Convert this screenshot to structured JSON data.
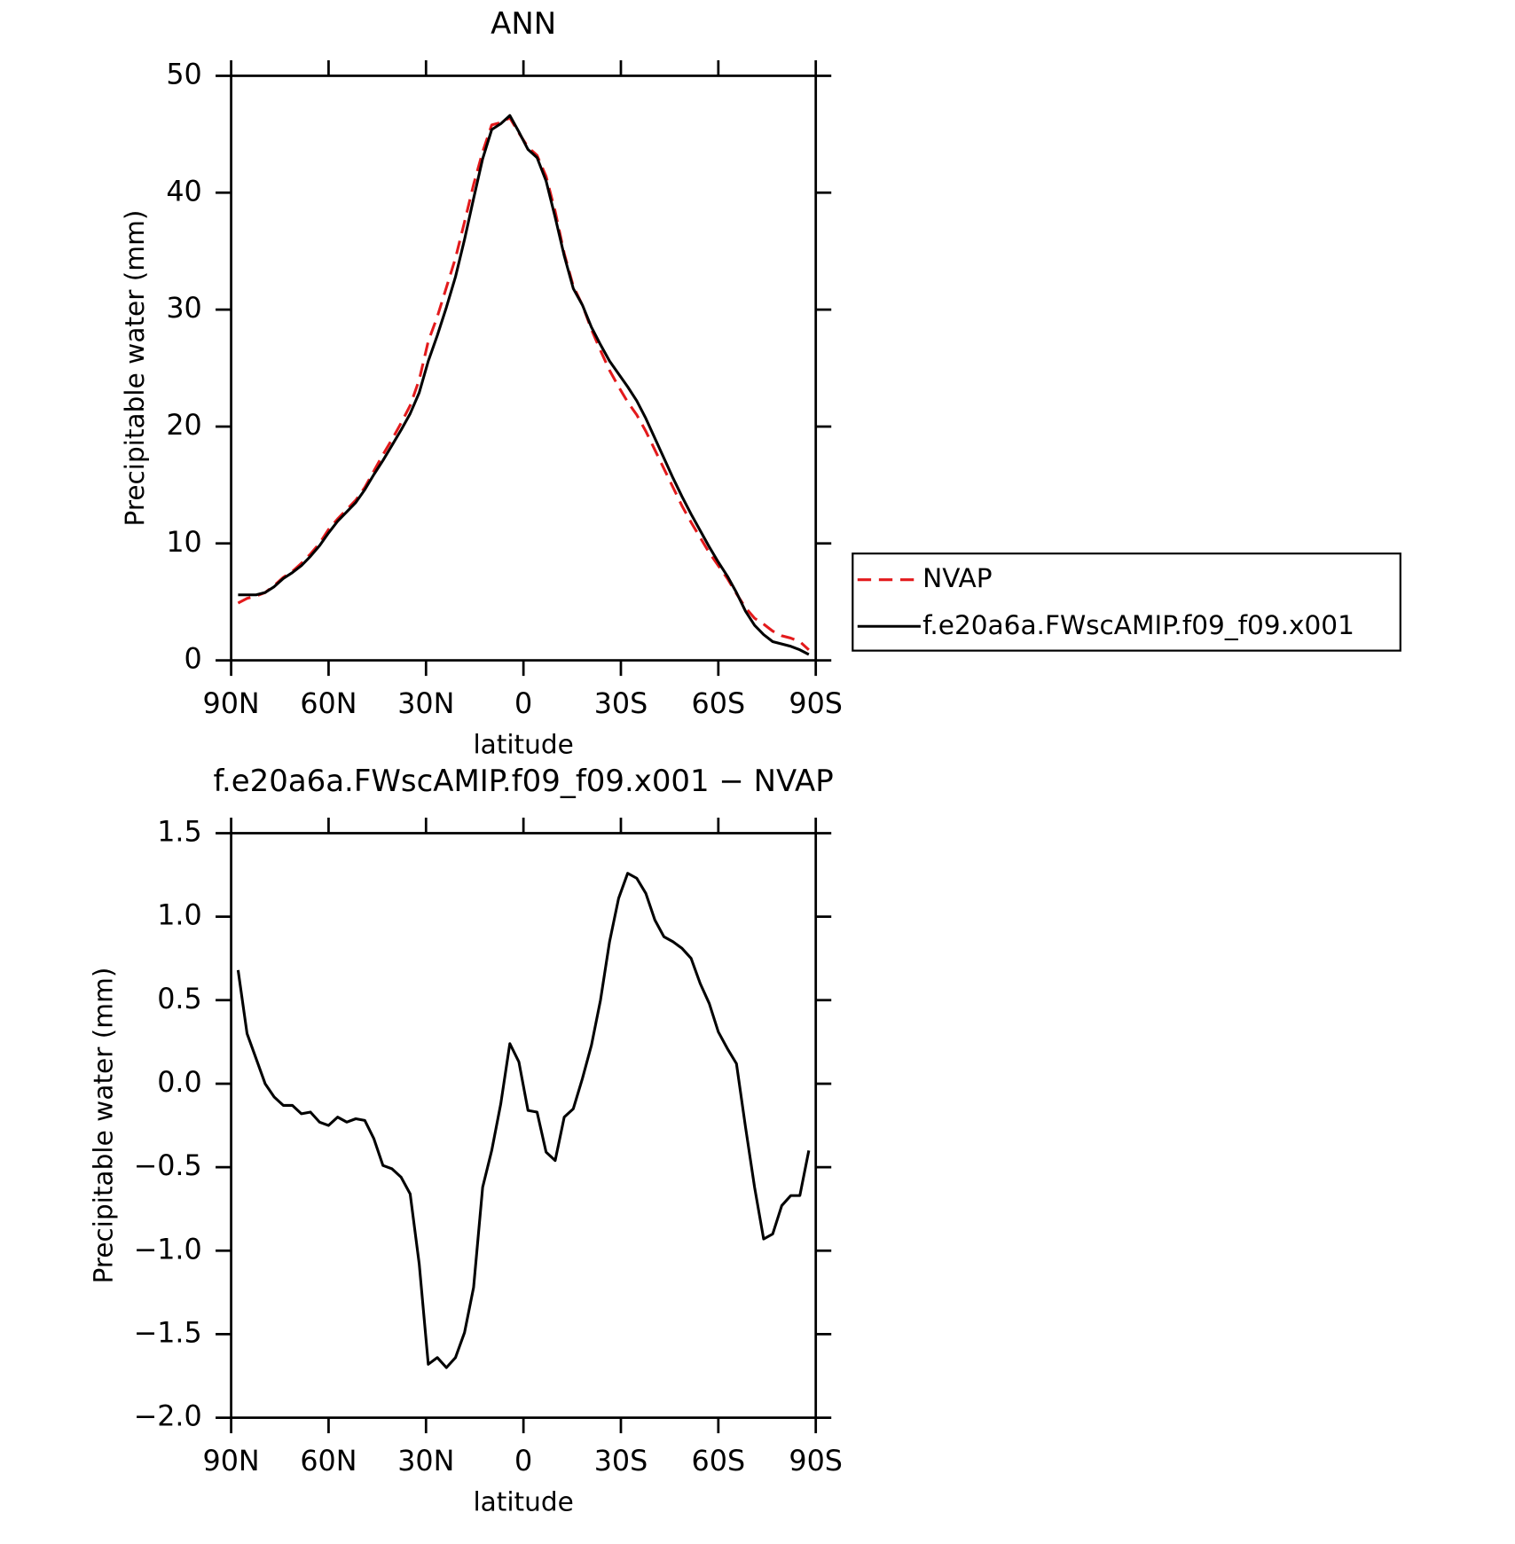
{
  "chart_data": [
    {
      "type": "line",
      "title": "ANN",
      "xlabel": "latitude",
      "ylabel": "Precipitable water (mm)",
      "x": [
        87.86,
        85.1,
        82.31,
        79.53,
        76.74,
        73.95,
        71.16,
        68.37,
        65.58,
        62.79,
        60.0,
        57.21,
        54.42,
        51.63,
        48.84,
        46.04,
        43.25,
        40.46,
        37.67,
        34.88,
        32.09,
        29.3,
        26.51,
        23.72,
        20.93,
        18.14,
        15.35,
        12.56,
        9.77,
        6.98,
        4.19,
        1.4,
        -1.4,
        -4.19,
        -6.98,
        -9.77,
        -12.56,
        -15.35,
        -18.14,
        -20.93,
        -23.72,
        -26.51,
        -29.3,
        -32.09,
        -34.88,
        -37.67,
        -40.46,
        -43.25,
        -46.04,
        -48.84,
        -51.63,
        -54.42,
        -57.21,
        -60.0,
        -62.79,
        -65.58,
        -68.37,
        -71.16,
        -73.95,
        -76.74,
        -79.53,
        -82.31,
        -85.1,
        -87.86
      ],
      "series": [
        {
          "name": "NVAP",
          "color": "#e31a1c",
          "dashed": true,
          "values": [
            4.9,
            5.3,
            5.5,
            5.8,
            6.4,
            7.1,
            7.6,
            8.3,
            9.1,
            10.0,
            11.2,
            12.1,
            12.9,
            13.7,
            14.8,
            16.2,
            17.6,
            18.9,
            20.3,
            21.8,
            24.0,
            27.3,
            29.4,
            31.9,
            34.4,
            37.5,
            40.7,
            43.5,
            45.8,
            46.0,
            46.4,
            45.1,
            43.9,
            43.2,
            41.4,
            38.4,
            34.8,
            32.0,
            30.4,
            28.3,
            26.5,
            24.8,
            23.4,
            22.1,
            21.0,
            19.6,
            18.0,
            16.4,
            14.8,
            13.2,
            11.8,
            10.5,
            9.2,
            8.1,
            7.0,
            5.7,
            4.5,
            3.6,
            3.1,
            2.5,
            2.1,
            1.9,
            1.6,
            0.9
          ]
        },
        {
          "name": "f.e20a6a.FWscAMIP.f09_f09.x001",
          "color": "#000000",
          "dashed": false,
          "values": [
            5.6,
            5.6,
            5.6,
            5.8,
            6.3,
            7.0,
            7.5,
            8.1,
            8.9,
            9.8,
            10.9,
            11.9,
            12.7,
            13.5,
            14.6,
            15.9,
            17.1,
            18.4,
            19.7,
            21.1,
            22.9,
            25.6,
            27.8,
            30.2,
            32.8,
            36.0,
            39.5,
            42.9,
            45.4,
            45.9,
            46.6,
            45.2,
            43.7,
            43.0,
            41.0,
            37.9,
            34.6,
            31.8,
            30.4,
            28.5,
            27.0,
            25.6,
            24.5,
            23.4,
            22.2,
            20.7,
            19.0,
            17.3,
            15.6,
            14.0,
            12.5,
            11.1,
            9.7,
            8.4,
            7.2,
            5.8,
            4.2,
            3.0,
            2.2,
            1.6,
            1.4,
            1.2,
            0.9,
            0.5
          ]
        }
      ],
      "xlim": [
        90,
        -90
      ],
      "xticks": [
        {
          "value": 90,
          "label": "90N"
        },
        {
          "value": 60,
          "label": "60N"
        },
        {
          "value": 30,
          "label": "30N"
        },
        0,
        {
          "value": -30,
          "label": "30S"
        },
        {
          "value": -60,
          "label": "60S"
        },
        {
          "value": -90,
          "label": "90S"
        }
      ],
      "ylim": [
        0,
        50
      ],
      "yticks": [
        0,
        10,
        20,
        30,
        40,
        50
      ],
      "legend": "right"
    },
    {
      "type": "line",
      "title": "f.e20a6a.FWscAMIP.f09_f09.x001 − NVAP",
      "xlabel": "latitude",
      "ylabel": "Precipitable water (mm)",
      "x": [
        87.86,
        85.1,
        82.31,
        79.53,
        76.74,
        73.95,
        71.16,
        68.37,
        65.58,
        62.79,
        60.0,
        57.21,
        54.42,
        51.63,
        48.84,
        46.04,
        43.25,
        40.46,
        37.67,
        34.88,
        32.09,
        29.3,
        26.51,
        23.72,
        20.93,
        18.14,
        15.35,
        12.56,
        9.77,
        6.98,
        4.19,
        1.4,
        -1.4,
        -4.19,
        -6.98,
        -9.77,
        -12.56,
        -15.35,
        -18.14,
        -20.93,
        -23.72,
        -26.51,
        -29.3,
        -32.09,
        -34.88,
        -37.67,
        -40.46,
        -43.25,
        -46.04,
        -48.84,
        -51.63,
        -54.42,
        -57.21,
        -60.0,
        -62.79,
        -65.58,
        -68.37,
        -71.16,
        -73.95,
        -76.74,
        -79.53,
        -82.31,
        -85.1,
        -87.86
      ],
      "color": "#000000",
      "values": [
        0.68,
        0.3,
        0.15,
        0.0,
        -0.08,
        -0.13,
        -0.13,
        -0.18,
        -0.17,
        -0.23,
        -0.25,
        -0.2,
        -0.23,
        -0.21,
        -0.22,
        -0.33,
        -0.49,
        -0.51,
        -0.56,
        -0.66,
        -1.08,
        -1.68,
        -1.64,
        -1.7,
        -1.64,
        -1.49,
        -1.22,
        -0.62,
        -0.4,
        -0.12,
        0.24,
        0.13,
        -0.16,
        -0.17,
        -0.41,
        -0.46,
        -0.2,
        -0.15,
        0.03,
        0.23,
        0.5,
        0.85,
        1.11,
        1.26,
        1.23,
        1.14,
        0.98,
        0.88,
        0.85,
        0.81,
        0.75,
        0.6,
        0.48,
        0.31,
        0.21,
        0.12,
        -0.26,
        -0.62,
        -0.93,
        -0.9,
        -0.73,
        -0.67,
        -0.67,
        -0.4
      ],
      "xlim": [
        90,
        -90
      ],
      "xticks": [
        {
          "value": 90,
          "label": "90N"
        },
        {
          "value": 60,
          "label": "60N"
        },
        {
          "value": 30,
          "label": "30N"
        },
        0,
        {
          "value": -30,
          "label": "30S"
        },
        {
          "value": -60,
          "label": "60S"
        },
        {
          "value": -90,
          "label": "90S"
        }
      ],
      "ylim": [
        -2.0,
        1.5
      ],
      "yticks": [
        {
          "value": -2.0,
          "label": "−2.0"
        },
        {
          "value": -1.5,
          "label": "−1.5"
        },
        {
          "value": -1.0,
          "label": "−1.0"
        },
        {
          "value": -0.5,
          "label": "−0.5"
        },
        {
          "value": 0.0,
          "label": "0.0"
        },
        0.5,
        {
          "value": 1.0,
          "label": "1.0"
        },
        1.5
      ]
    }
  ]
}
